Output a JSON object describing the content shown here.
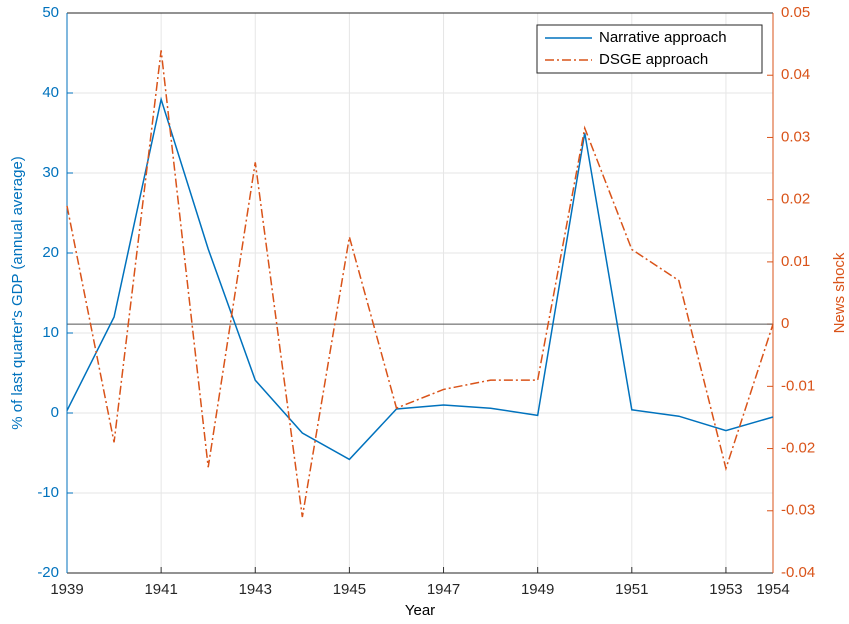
{
  "chart_data": {
    "type": "line",
    "xlabel": "Year",
    "ylabel": "% of last quarter's GDP (annual average)",
    "y2label": "News shock",
    "x": [
      1939,
      1940,
      1941,
      1942,
      1943,
      1944,
      1945,
      1946,
      1947,
      1948,
      1949,
      1950,
      1951,
      1952,
      1953,
      1954
    ],
    "series": [
      {
        "name": "Narrative approach",
        "color": "#0072bd",
        "style": "solid",
        "values": [
          0.3,
          12,
          39.2,
          20.5,
          4.1,
          -2.5,
          -5.8,
          0.5,
          1.0,
          0.6,
          -0.3,
          35,
          0.4,
          -0.4,
          -2.2,
          -0.5
        ]
      },
      {
        "name": "DSGE approach",
        "color": "#d95319",
        "style": "dashdot",
        "axis": "y2",
        "values": [
          0.019,
          -0.019,
          0.044,
          -0.023,
          0.026,
          -0.031,
          0.014,
          -0.0135,
          -0.0105,
          -0.009,
          -0.009,
          0.0315,
          0.012,
          0.007,
          -0.0232,
          0.0
        ]
      }
    ],
    "xlim": [
      1939,
      1954
    ],
    "xticks": [
      1939,
      1941,
      1943,
      1945,
      1947,
      1949,
      1951,
      1953,
      1954
    ],
    "ylim": [
      -20,
      50
    ],
    "yticks": [
      -20,
      -10,
      0,
      10,
      20,
      30,
      40,
      50
    ],
    "y2lim": [
      -0.04,
      0.05
    ],
    "y2ticks": [
      -0.04,
      -0.03,
      -0.02,
      -0.01,
      0,
      0.01,
      0.02,
      0.03,
      0.04,
      0.05
    ],
    "y2_zero_line": true,
    "grid": true,
    "legend": "northeast"
  }
}
